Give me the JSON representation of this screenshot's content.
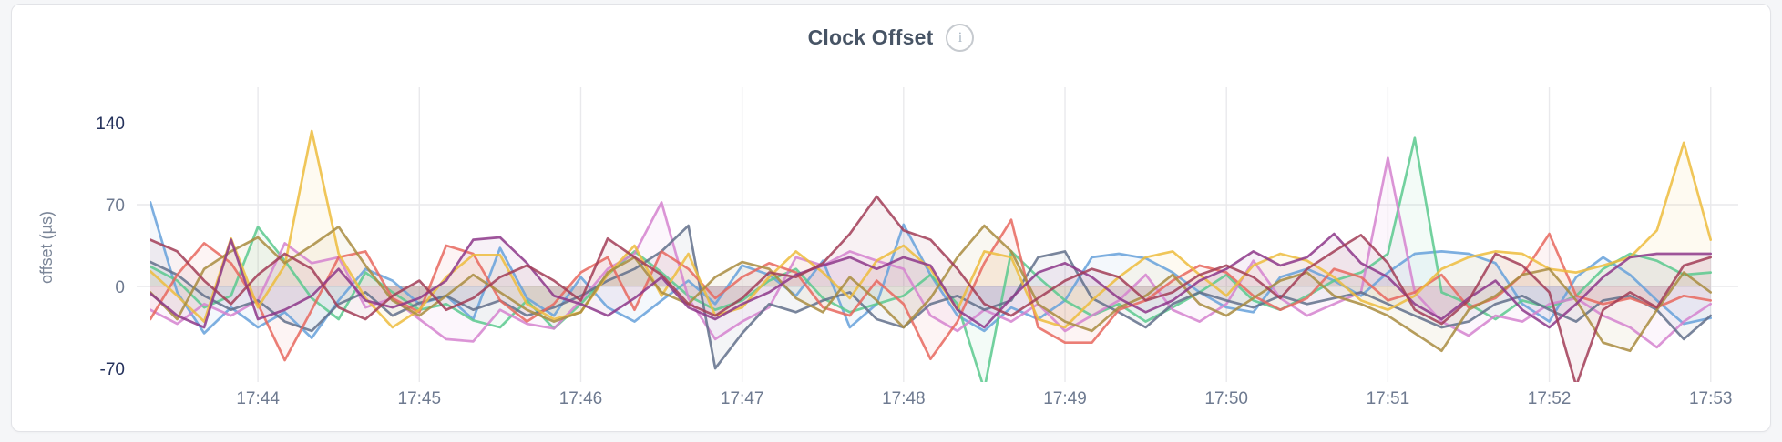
{
  "card": {
    "title": "Clock Offset",
    "info_icon_glyph": "i"
  },
  "chart_data": {
    "type": "line",
    "title": "Clock Offset",
    "ylabel": "offset (µs)",
    "xlabel": "",
    "x_start": "17:43:20",
    "x_step_seconds": 10,
    "x_points": 59,
    "ylim_visible": [
      -75,
      145
    ],
    "grid": true,
    "legend": "none",
    "area_fill": true,
    "x_ticks": [
      {
        "label": "17:44",
        "index": 4
      },
      {
        "label": "17:45",
        "index": 10
      },
      {
        "label": "17:46",
        "index": 16
      },
      {
        "label": "17:47",
        "index": 22
      },
      {
        "label": "17:48",
        "index": 28
      },
      {
        "label": "17:49",
        "index": 34
      },
      {
        "label": "17:50",
        "index": 40
      },
      {
        "label": "17:51",
        "index": 46
      },
      {
        "label": "17:52",
        "index": 52
      },
      {
        "label": "17:53",
        "index": 58
      }
    ],
    "y_ticks": [
      {
        "label": "140",
        "value": 140,
        "color": "#25325c",
        "grid": false
      },
      {
        "label": "70",
        "value": 70,
        "color": "#6e7a90",
        "grid": true
      },
      {
        "label": "0",
        "value": 0,
        "color": "#6e7a90",
        "grid": true
      },
      {
        "label": "-70",
        "value": -70,
        "color": "#25325c",
        "grid": false
      }
    ],
    "colors": {
      "axis_label": "#7b8698",
      "x_tick": "#6e7a90",
      "gridline": "#e9e9ec",
      "title": "#475465"
    },
    "series": [
      {
        "name": "series-blue",
        "color": "#66a1da",
        "values": [
          72,
          -5,
          -40,
          -18,
          -35,
          -22,
          -44,
          -12,
          15,
          5,
          -15,
          -8,
          -28,
          33,
          -10,
          -25,
          8,
          -18,
          -30,
          -12,
          5,
          -15,
          18,
          10,
          -8,
          22,
          -35,
          -15,
          53,
          10,
          -25,
          -38,
          -18,
          -28,
          -12,
          25,
          28,
          24,
          12,
          -5,
          -18,
          -22,
          8,
          15,
          5,
          -8,
          12,
          28,
          30,
          28,
          20,
          -15,
          -30,
          8,
          25,
          10,
          -12,
          -32,
          -27
        ]
      },
      {
        "name": "series-mint",
        "color": "#5bc98e",
        "values": [
          17,
          5,
          -18,
          -8,
          51,
          22,
          -10,
          -28,
          12,
          -5,
          -20,
          -15,
          -29,
          -35,
          -12,
          -36,
          -15,
          10,
          30,
          12,
          -8,
          -20,
          -12,
          5,
          15,
          -10,
          -22,
          -15,
          -8,
          10,
          -15,
          -88,
          30,
          8,
          -12,
          -25,
          -15,
          -30,
          -18,
          -5,
          10,
          -12,
          -20,
          -8,
          5,
          12,
          28,
          127,
          -5,
          -15,
          -28,
          -12,
          -18,
          -8,
          15,
          28,
          22,
          10,
          12
        ]
      },
      {
        "name": "series-orchid",
        "color": "#d583cf",
        "values": [
          -20,
          -32,
          -15,
          -25,
          -12,
          37,
          20,
          25,
          -18,
          -10,
          -28,
          -45,
          -47,
          -20,
          -32,
          -36,
          -12,
          15,
          28,
          72,
          -10,
          -45,
          -30,
          -18,
          25,
          18,
          30,
          22,
          15,
          -25,
          -38,
          -20,
          -30,
          -15,
          -38,
          -25,
          -12,
          10,
          -20,
          -30,
          -15,
          22,
          -10,
          -25,
          -15,
          -5,
          110,
          -5,
          -30,
          -42,
          -25,
          -30,
          -15,
          -10,
          -25,
          -35,
          -52,
          -30,
          -15
        ]
      },
      {
        "name": "series-slate",
        "color": "#61708b",
        "values": [
          21,
          10,
          -8,
          -20,
          -12,
          -30,
          -38,
          -15,
          -5,
          -25,
          -14,
          -8,
          -20,
          -12,
          -25,
          -18,
          -8,
          5,
          15,
          30,
          52,
          -70,
          -40,
          -15,
          -22,
          -12,
          -5,
          -28,
          -35,
          -15,
          -8,
          -20,
          -12,
          25,
          30,
          -10,
          -22,
          -35,
          -15,
          -5,
          -12,
          -18,
          -8,
          -15,
          -10,
          -5,
          -15,
          -25,
          -35,
          -30,
          -15,
          -8,
          -20,
          -30,
          -12,
          -8,
          -20,
          -45,
          -25
        ]
      },
      {
        "name": "series-salmon",
        "color": "#e8675e",
        "values": [
          -28,
          10,
          37,
          20,
          -15,
          -63,
          -20,
          25,
          30,
          -10,
          -22,
          35,
          28,
          -12,
          -30,
          -15,
          12,
          25,
          -20,
          30,
          15,
          -10,
          8,
          20,
          12,
          -18,
          -25,
          5,
          -15,
          -62,
          -30,
          20,
          57,
          -35,
          -48,
          -48,
          -20,
          -12,
          5,
          18,
          12,
          -8,
          -20,
          -10,
          15,
          8,
          -12,
          -5,
          10,
          -18,
          -10,
          10,
          45,
          -8,
          -15,
          -10,
          -18,
          -8,
          -12
        ]
      },
      {
        "name": "series-gold",
        "color": "#edbc3d",
        "values": [
          13,
          -8,
          -30,
          41,
          -18,
          18,
          133,
          28,
          -10,
          -35,
          -20,
          8,
          27,
          27,
          -15,
          -28,
          -22,
          10,
          35,
          -8,
          28,
          -25,
          -18,
          8,
          30,
          12,
          -10,
          22,
          35,
          15,
          -20,
          30,
          25,
          -28,
          -35,
          -12,
          8,
          25,
          30,
          10,
          -8,
          18,
          28,
          22,
          8,
          -12,
          -20,
          -8,
          15,
          25,
          30,
          28,
          15,
          12,
          18,
          25,
          48,
          123,
          40
        ]
      },
      {
        "name": "series-bronze",
        "color": "#a98c3f",
        "values": [
          -5,
          -28,
          15,
          30,
          42,
          20,
          35,
          51,
          18,
          -12,
          -25,
          -8,
          10,
          -5,
          -20,
          -30,
          -22,
          12,
          25,
          -5,
          -15,
          8,
          21,
          15,
          -10,
          -22,
          8,
          -12,
          -35,
          -10,
          25,
          52,
          30,
          -15,
          -30,
          -38,
          -18,
          -8,
          10,
          -15,
          -25,
          -10,
          5,
          12,
          -8,
          -15,
          -25,
          -40,
          -55,
          -20,
          -8,
          10,
          15,
          -12,
          -48,
          -55,
          -20,
          12,
          -5
        ]
      },
      {
        "name": "series-plum",
        "color": "#8d3789",
        "values": [
          -6,
          -25,
          -35,
          40,
          -28,
          -20,
          -8,
          15,
          -12,
          -18,
          -10,
          5,
          40,
          42,
          20,
          -8,
          -15,
          -25,
          -10,
          8,
          -18,
          -28,
          -15,
          -5,
          10,
          18,
          25,
          15,
          25,
          18,
          -20,
          -35,
          -10,
          12,
          20,
          8,
          -10,
          -22,
          -12,
          5,
          15,
          30,
          18,
          25,
          45,
          20,
          8,
          -15,
          -28,
          -10,
          5,
          -20,
          -35,
          -15,
          8,
          25,
          28,
          28,
          28
        ]
      },
      {
        "name": "series-maroon",
        "color": "#a23d57",
        "values": [
          40,
          30,
          5,
          -15,
          10,
          28,
          15,
          -18,
          -28,
          -8,
          5,
          -20,
          -10,
          8,
          18,
          5,
          -12,
          41,
          25,
          10,
          -15,
          -25,
          -10,
          12,
          8,
          20,
          45,
          77,
          48,
          40,
          15,
          -15,
          -25,
          -10,
          5,
          15,
          8,
          -12,
          -5,
          10,
          18,
          8,
          -10,
          15,
          30,
          44,
          20,
          -20,
          -32,
          -12,
          28,
          18,
          -5,
          -85,
          -20,
          -5,
          -18,
          18,
          25
        ]
      }
    ]
  }
}
